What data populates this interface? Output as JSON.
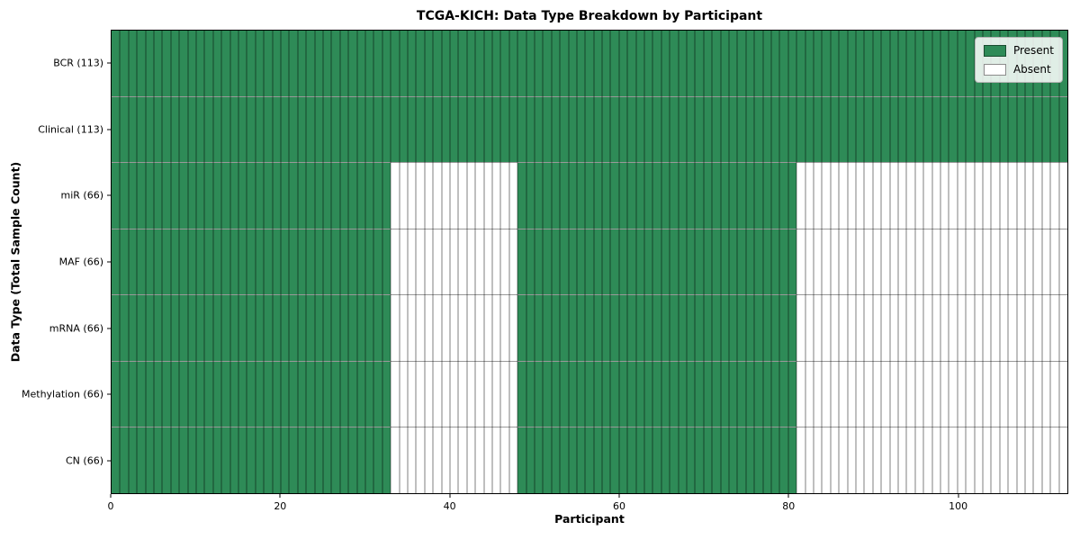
{
  "chart_data": {
    "type": "heatmap",
    "title": "TCGA-KICH: Data Type Breakdown by Participant",
    "xlabel": "Participant",
    "ylabel": "Data Type (Total Sample Count)",
    "x_ticks": [
      0,
      20,
      40,
      60,
      80,
      100
    ],
    "x_range": [
      0,
      113
    ],
    "n_participants": 113,
    "grid": true,
    "legend_position": "upper right",
    "colors": {
      "present": "#2e8b57",
      "absent": "#ffffff"
    },
    "legend": [
      {
        "label": "Present",
        "key": "present"
      },
      {
        "label": "Absent",
        "key": "absent"
      }
    ],
    "rows": [
      {
        "label": "BCR (113)",
        "present_count": 113,
        "absent_count": 0,
        "present_segments": [
          [
            0,
            113
          ]
        ]
      },
      {
        "label": "Clinical (113)",
        "present_count": 113,
        "absent_count": 0,
        "present_segments": [
          [
            0,
            113
          ]
        ]
      },
      {
        "label": "miR (66)",
        "present_count": 66,
        "absent_count": 47,
        "present_segments": [
          [
            0,
            33
          ],
          [
            48,
            81
          ]
        ]
      },
      {
        "label": "MAF (66)",
        "present_count": 66,
        "absent_count": 47,
        "present_segments": [
          [
            0,
            33
          ],
          [
            48,
            81
          ]
        ]
      },
      {
        "label": "mRNA (66)",
        "present_count": 66,
        "absent_count": 47,
        "present_segments": [
          [
            0,
            33
          ],
          [
            48,
            81
          ]
        ]
      },
      {
        "label": "Methylation (66)",
        "present_count": 66,
        "absent_count": 47,
        "present_segments": [
          [
            0,
            33
          ],
          [
            48,
            81
          ]
        ]
      },
      {
        "label": "CN (66)",
        "present_count": 66,
        "absent_count": 47,
        "present_segments": [
          [
            0,
            33
          ],
          [
            48,
            81
          ]
        ]
      }
    ]
  }
}
